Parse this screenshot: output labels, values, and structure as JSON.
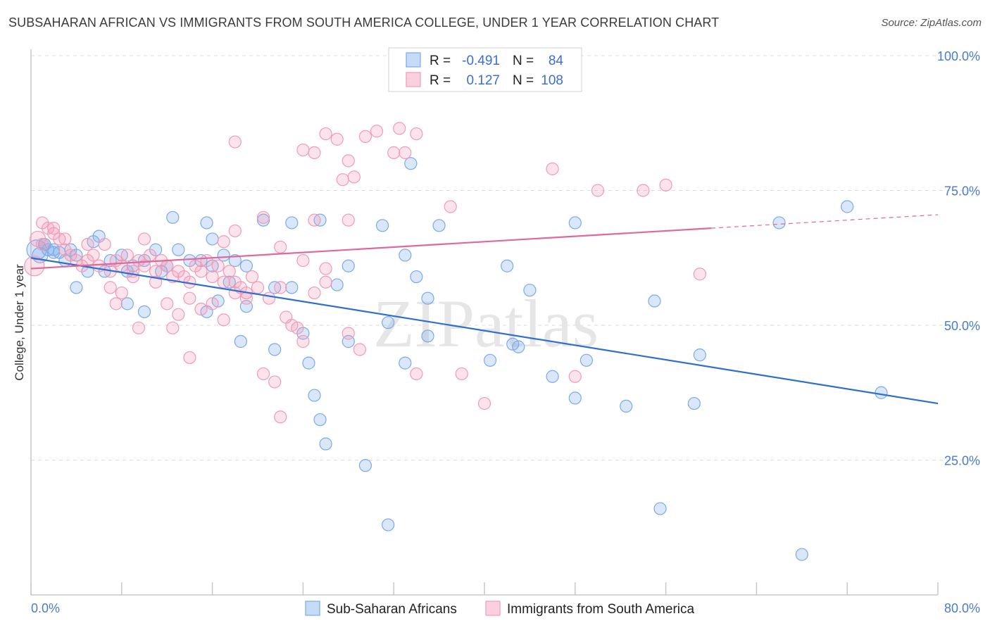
{
  "title": "SUBSAHARAN AFRICAN VS IMMIGRANTS FROM SOUTH AMERICA COLLEGE, UNDER 1 YEAR CORRELATION CHART",
  "source": "Source: ZipAtlas.com",
  "watermark": "ZIPatlas",
  "chart_data": {
    "type": "scatter",
    "title": "SUBSAHARAN AFRICAN VS IMMIGRANTS FROM SOUTH AMERICA COLLEGE, UNDER 1 YEAR CORRELATION CHART",
    "ylabel": "College, Under 1 year",
    "xlabel": "",
    "xlim": [
      0,
      80
    ],
    "ylim": [
      0,
      100
    ],
    "x_tick_labels": [
      "0.0%",
      "80.0%"
    ],
    "y_tick_labels": [
      "25.0%",
      "50.0%",
      "75.0%",
      "100.0%"
    ],
    "y_ticks": [
      25,
      50,
      75,
      100
    ],
    "grid": true,
    "legend_position": "top-center",
    "legend": [
      {
        "name": "Sub-Saharan Africans",
        "r_label": "R =",
        "r": "-0.491",
        "n_label": "N =",
        "n": "84",
        "color": "#7aaae8"
      },
      {
        "name": "Immigrants from South America",
        "r_label": "R =",
        "r": "0.127",
        "n_label": "N =",
        "n": "108",
        "color": "#f29ab8"
      }
    ],
    "series": [
      {
        "name": "Sub-Saharan Africans",
        "color": "#7aaae8",
        "trend": {
          "x": [
            0,
            80
          ],
          "y": [
            62.5,
            35.5
          ],
          "color": "#2f6fd0"
        },
        "points": [
          [
            0.5,
            64
          ],
          [
            0.8,
            63
          ],
          [
            1.2,
            65
          ],
          [
            1.5,
            64
          ],
          [
            2,
            63.5
          ],
          [
            2.5,
            63.5
          ],
          [
            3,
            62
          ],
          [
            4,
            63
          ],
          [
            5.5,
            65.5
          ],
          [
            6,
            66.5
          ],
          [
            7,
            62
          ],
          [
            8,
            63
          ],
          [
            9,
            61
          ],
          [
            10,
            62
          ],
          [
            11,
            64
          ],
          [
            12,
            61
          ],
          [
            13,
            64
          ],
          [
            14,
            62
          ],
          [
            15,
            62
          ],
          [
            16,
            61
          ],
          [
            17,
            63
          ],
          [
            18,
            62
          ],
          [
            19,
            61
          ],
          [
            5,
            60
          ],
          [
            6.5,
            60
          ],
          [
            8.5,
            60
          ],
          [
            11.5,
            60
          ],
          [
            12.5,
            70
          ],
          [
            15.5,
            69
          ],
          [
            16,
            66
          ],
          [
            17.5,
            58
          ],
          [
            20.5,
            69.5
          ],
          [
            23,
            69
          ],
          [
            25.5,
            69.5
          ],
          [
            28,
            61
          ],
          [
            31,
            68.5
          ],
          [
            33,
            63
          ],
          [
            36,
            68.5
          ],
          [
            42,
            61
          ],
          [
            48,
            69
          ],
          [
            4,
            57
          ],
          [
            8.5,
            54
          ],
          [
            10,
            52.5
          ],
          [
            15.5,
            52.5
          ],
          [
            16.5,
            54.5
          ],
          [
            19,
            53.5
          ],
          [
            21.5,
            57
          ],
          [
            23,
            57
          ],
          [
            24,
            48.5
          ],
          [
            27,
            57.5
          ],
          [
            18.5,
            47
          ],
          [
            21.5,
            45.5
          ],
          [
            24.5,
            43
          ],
          [
            28,
            47
          ],
          [
            31.5,
            50.5
          ],
          [
            33,
            43
          ],
          [
            35,
            48
          ],
          [
            34,
            59
          ],
          [
            35,
            55
          ],
          [
            40.5,
            43.5
          ],
          [
            42.5,
            46.5
          ],
          [
            43,
            46
          ],
          [
            44,
            56.5
          ],
          [
            46,
            40.5
          ],
          [
            48,
            36.5
          ],
          [
            49,
            43.5
          ],
          [
            52.5,
            35
          ],
          [
            55,
            54.5
          ],
          [
            58.5,
            35.5
          ],
          [
            59,
            44.5
          ],
          [
            25,
            37
          ],
          [
            25.5,
            32.5
          ],
          [
            26,
            28
          ],
          [
            29.5,
            24
          ],
          [
            31.5,
            13
          ],
          [
            55.5,
            16
          ],
          [
            68,
            7.5
          ],
          [
            33.5,
            80
          ],
          [
            66,
            69
          ],
          [
            72,
            72
          ],
          [
            75,
            37.5
          ],
          [
            1.2,
            65
          ],
          [
            2,
            64
          ],
          [
            3.5,
            64
          ]
        ]
      },
      {
        "name": "Immigrants from South America",
        "color": "#f29ab8",
        "trend": {
          "x": [
            0,
            60
          ],
          "y": [
            60.5,
            68
          ],
          "dashed_to": [
            80,
            70.5
          ],
          "color": "#e0689a"
        },
        "points": [
          [
            0.3,
            61
          ],
          [
            0.6,
            66
          ],
          [
            1,
            65
          ],
          [
            1.5,
            68
          ],
          [
            2,
            67
          ],
          [
            2.5,
            66
          ],
          [
            3,
            64
          ],
          [
            3.5,
            63
          ],
          [
            4,
            62
          ],
          [
            4.5,
            61
          ],
          [
            5,
            62
          ],
          [
            5.5,
            63
          ],
          [
            6,
            61
          ],
          [
            6.5,
            65
          ],
          [
            7,
            60
          ],
          [
            7.5,
            62
          ],
          [
            8,
            61
          ],
          [
            8.5,
            63
          ],
          [
            9,
            60
          ],
          [
            9.5,
            62
          ],
          [
            10,
            61
          ],
          [
            10.5,
            63
          ],
          [
            11,
            60
          ],
          [
            11.5,
            62
          ],
          [
            12,
            61
          ],
          [
            12.5,
            59
          ],
          [
            13,
            60
          ],
          [
            13.5,
            59
          ],
          [
            14,
            58
          ],
          [
            14.5,
            61
          ],
          [
            15,
            60
          ],
          [
            15.5,
            62
          ],
          [
            16,
            59
          ],
          [
            16.5,
            61
          ],
          [
            17,
            58
          ],
          [
            17.5,
            60
          ],
          [
            18,
            58
          ],
          [
            18.5,
            57
          ],
          [
            19,
            56
          ],
          [
            19.5,
            59
          ],
          [
            1,
            69
          ],
          [
            2,
            68
          ],
          [
            3,
            66
          ],
          [
            5,
            65
          ],
          [
            7,
            57
          ],
          [
            8,
            56
          ],
          [
            9,
            59
          ],
          [
            10,
            66
          ],
          [
            11,
            58
          ],
          [
            12,
            54
          ],
          [
            13,
            52
          ],
          [
            14,
            55
          ],
          [
            15,
            53
          ],
          [
            16,
            54
          ],
          [
            17,
            51
          ],
          [
            18,
            56
          ],
          [
            19,
            55
          ],
          [
            20,
            57
          ],
          [
            21,
            55
          ],
          [
            22,
            57
          ],
          [
            22.5,
            51.5
          ],
          [
            23,
            50
          ],
          [
            23.5,
            49.5
          ],
          [
            24,
            47
          ],
          [
            25,
            56
          ],
          [
            26,
            58
          ],
          [
            7.5,
            54
          ],
          [
            9.5,
            49.5
          ],
          [
            12.5,
            49.5
          ],
          [
            14,
            44
          ],
          [
            20.5,
            41
          ],
          [
            21.5,
            39.5
          ],
          [
            22,
            33
          ],
          [
            29,
            45.5
          ],
          [
            34,
            41
          ],
          [
            38,
            41
          ],
          [
            40,
            35.5
          ],
          [
            48,
            40.5
          ],
          [
            59,
            59.5
          ],
          [
            18,
            84
          ],
          [
            24,
            82.5
          ],
          [
            25,
            82
          ],
          [
            26,
            85.5
          ],
          [
            27,
            84.5
          ],
          [
            27.5,
            77
          ],
          [
            28,
            80.5
          ],
          [
            28.5,
            77.5
          ],
          [
            29.5,
            85
          ],
          [
            30.5,
            86
          ],
          [
            32,
            82
          ],
          [
            32.5,
            86.5
          ],
          [
            33,
            82
          ],
          [
            34,
            85.5
          ],
          [
            34.5,
            100
          ],
          [
            46,
            79
          ],
          [
            50,
            75
          ],
          [
            54,
            75
          ],
          [
            56,
            76
          ],
          [
            37,
            72
          ],
          [
            28,
            69.5
          ],
          [
            25,
            69.5
          ],
          [
            20.5,
            70
          ],
          [
            18,
            67.5
          ],
          [
            17,
            65.5
          ],
          [
            22,
            64.5
          ],
          [
            24,
            62
          ],
          [
            26,
            60.5
          ],
          [
            28,
            48.5
          ]
        ]
      }
    ]
  },
  "bottom_legend": [
    {
      "label": "Sub-Saharan Africans",
      "color": "#7aaae8"
    },
    {
      "label": "Immigrants from South America",
      "color": "#f29ab8"
    }
  ]
}
